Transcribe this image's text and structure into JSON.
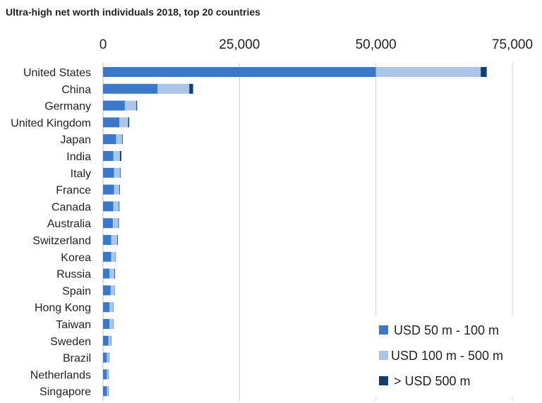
{
  "chart_data": {
    "type": "bar",
    "orientation": "horizontal",
    "stacked": true,
    "title": "Ultra-high net worth individuals 2018, top 20 countries",
    "xlabel": "",
    "ylabel": "",
    "xlim": [
      0,
      75000
    ],
    "xticks": [
      0,
      25000,
      50000,
      75000
    ],
    "xtick_labels": [
      "0",
      "25,000",
      "50,000",
      "75,000"
    ],
    "grid": true,
    "legend_position": "bottom-right",
    "categories": [
      "United States",
      "China",
      "Germany",
      "United Kingdom",
      "Japan",
      "India",
      "Italy",
      "France",
      "Canada",
      "Australia",
      "Switzerland",
      "Korea",
      "Russia",
      "Spain",
      "Hong Kong",
      "Taiwan",
      "Sweden",
      "Brazil",
      "Netherlands",
      "Singapore"
    ],
    "series": [
      {
        "name": "USD 50 m - 100 m",
        "color": "#3a78c9",
        "values": [
          50000,
          10000,
          4000,
          3000,
          2400,
          1900,
          2000,
          2000,
          1900,
          1800,
          1500,
          1500,
          1200,
          1400,
          1200,
          1200,
          1000,
          700,
          700,
          700
        ]
      },
      {
        "name": "USD 100 m - 500 m",
        "color": "#aac5e6",
        "values": [
          19200,
          5800,
          2100,
          1600,
          1100,
          1200,
          1100,
          1000,
          1000,
          1000,
          1100,
          800,
          900,
          700,
          700,
          700,
          500,
          400,
          300,
          300
        ]
      },
      {
        "name": "> USD 500 m",
        "color": "#0f3f73",
        "values": [
          1100,
          700,
          150,
          200,
          100,
          250,
          100,
          100,
          100,
          100,
          100,
          50,
          100,
          50,
          50,
          50,
          50,
          50,
          50,
          50
        ]
      }
    ]
  }
}
